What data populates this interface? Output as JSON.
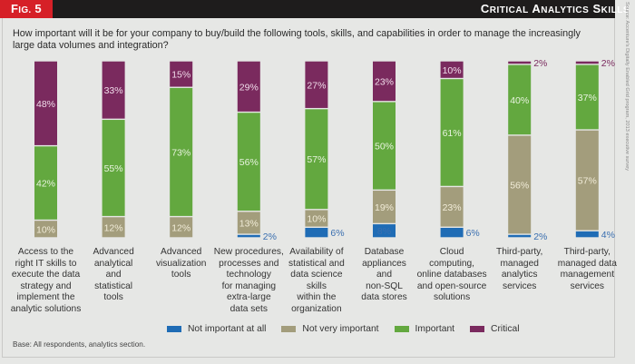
{
  "header": {
    "fig_prefix": "F",
    "fig_small": "IG.",
    "fig_number": " 5",
    "title_words": [
      {
        "cap": "C",
        "rest": "RITICAL"
      },
      {
        "cap": "A",
        "rest": "NALYTICS"
      },
      {
        "cap": "S",
        "rest": "KILLS"
      }
    ]
  },
  "source_note": "Source: Accenture's Digitally Enabled Grid program, 2013 executive survey",
  "chart_data": {
    "type": "bar",
    "stacked": true,
    "orientation": "vertical",
    "title": "Critical Analytics Skills",
    "subtitle": "How important will it be for your company to buy/build the following tools, skills, and capabilities in order to manage the increasingly large data volumes and integration?",
    "xlabel": "",
    "ylabel": "",
    "ylim": [
      0,
      100
    ],
    "grid": false,
    "legend_position": "bottom",
    "categories": [
      "Access to the right IT skills to execute the data strategy and implement the analytic solutions",
      "Advanced analytical and statistical tools",
      "Advanced visualization tools",
      "New procedures, processes and technology for managing extra-large data sets",
      "Availability of statistical and data science skills within the organization",
      "Database appliances and non-SQL data stores",
      "Cloud computing, online databases and open-source solutions",
      "Third-party, managed analytics services",
      "Third-party, managed data management services"
    ],
    "category_lines": [
      [
        "Access to the",
        "right IT skills to",
        "execute the data",
        "strategy and",
        "implement the",
        "analytic solutions"
      ],
      [
        "Advanced",
        "analytical",
        "and",
        "statistical",
        "tools"
      ],
      [
        "Advanced",
        "visualization",
        "tools"
      ],
      [
        "New procedures,",
        "processes and",
        "technology",
        "for managing",
        "extra-large",
        "data sets"
      ],
      [
        "Availability of",
        "statistical and",
        "data science",
        "skills",
        "within the",
        "organization"
      ],
      [
        "Database",
        "appliances",
        "and",
        "non-SQL",
        "data stores"
      ],
      [
        "Cloud",
        "computing,",
        "online databases",
        "and open-source",
        "solutions"
      ],
      [
        "Third-party,",
        "managed",
        "analytics",
        "services"
      ],
      [
        "Third-party,",
        "managed data",
        "management",
        "services"
      ]
    ],
    "series": [
      {
        "name": "Not important at all",
        "color": "#1f6cb5",
        "values": [
          0,
          0,
          0,
          2,
          6,
          8,
          6,
          2,
          4
        ]
      },
      {
        "name": "Not very important",
        "color": "#a39d7c",
        "values": [
          10,
          12,
          12,
          13,
          10,
          19,
          23,
          56,
          57
        ]
      },
      {
        "name": "Important",
        "color": "#63a83f",
        "values": [
          42,
          55,
          73,
          56,
          57,
          50,
          61,
          40,
          37
        ]
      },
      {
        "name": "Critical",
        "color": "#7a2a5e",
        "values": [
          48,
          33,
          15,
          29,
          27,
          23,
          10,
          2,
          2
        ]
      }
    ],
    "data_labels": [
      [
        "",
        "10%",
        "42%",
        "48%"
      ],
      [
        "",
        "12%",
        "55%",
        "33%"
      ],
      [
        "",
        "12%",
        "73%",
        "15%"
      ],
      [
        "2%",
        "13%",
        "56%",
        "29%"
      ],
      [
        "6%",
        "10%",
        "57%",
        "27%"
      ],
      [
        "8%",
        "19%",
        "50%",
        "23%"
      ],
      [
        "6%",
        "23%",
        "61%",
        "10%"
      ],
      [
        "2%",
        "56%",
        "40%",
        "2%"
      ],
      [
        "4%",
        "57%",
        "37%",
        "2%"
      ]
    ]
  },
  "legend": [
    {
      "label": "Not important at all",
      "color": "#1f6cb5"
    },
    {
      "label": "Not very important",
      "color": "#a39d7c"
    },
    {
      "label": "Important",
      "color": "#63a83f"
    },
    {
      "label": "Critical",
      "color": "#7a2a5e"
    }
  ],
  "footnote": "Base: All respondents, analytics section."
}
